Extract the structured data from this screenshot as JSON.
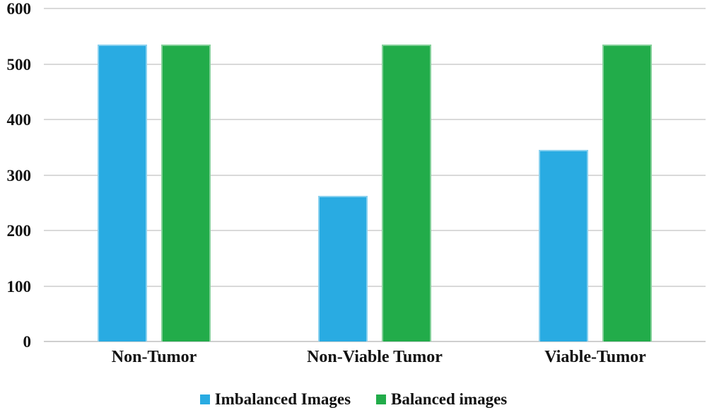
{
  "chart_data": {
    "type": "bar",
    "categories": [
      "Non-Tumor",
      "Non-Viable Tumor",
      "Viable-Tumor"
    ],
    "series": [
      {
        "name": "Imbalanced Images",
        "color": "#29ABE2",
        "values": [
          535,
          262,
          345
        ]
      },
      {
        "name": "Balanced images",
        "color": "#22AC4A",
        "values": [
          535,
          535,
          535
        ]
      }
    ],
    "title": "",
    "xlabel": "",
    "ylabel": "",
    "ylim": [
      0,
      600
    ],
    "yticks": [
      0,
      100,
      200,
      300,
      400,
      500,
      600
    ],
    "grid": "horizontal",
    "gridline_color": "#d9d9d9",
    "legend_position": "bottom",
    "background_color": "#ffffff",
    "text_color": "#111111"
  }
}
